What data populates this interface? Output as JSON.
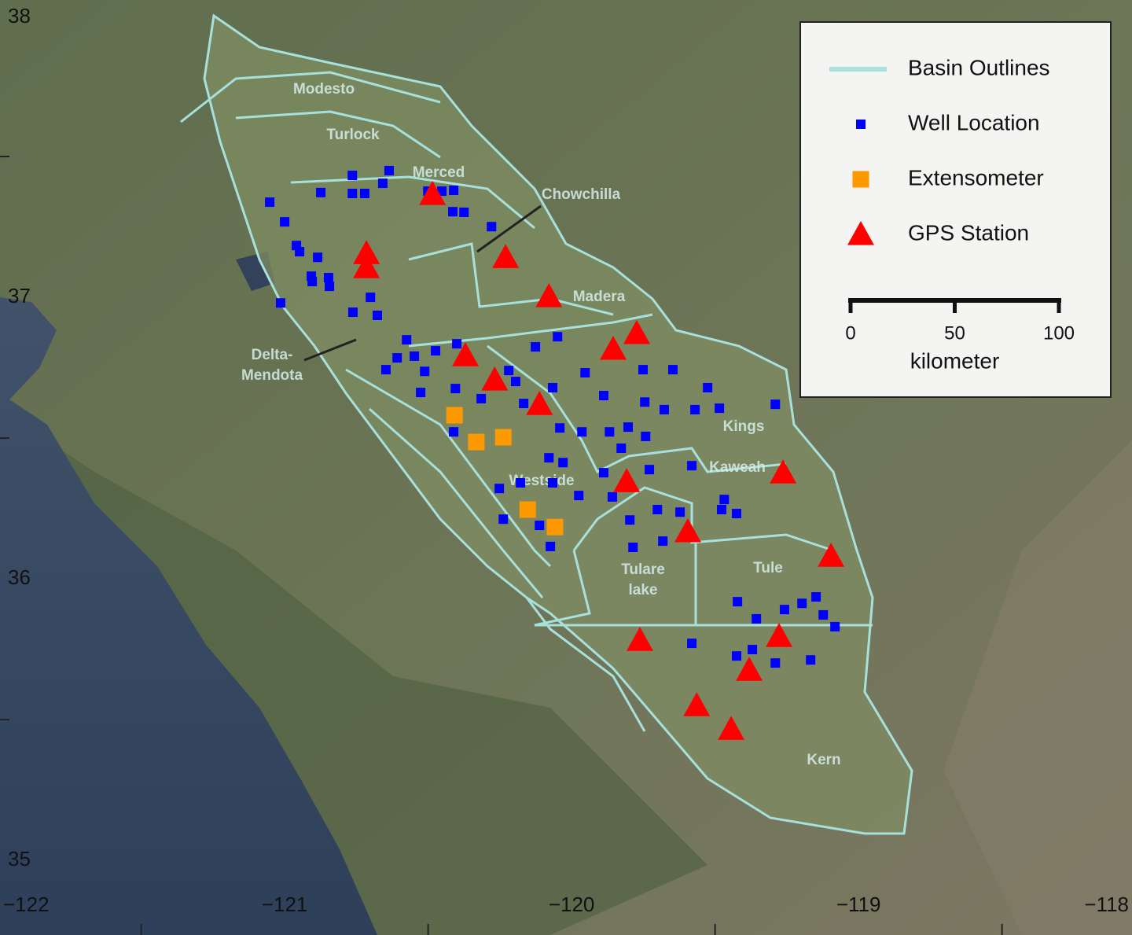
{
  "map": {
    "type": "point-map",
    "xlim": [
      -121.992,
      -118.047
    ],
    "ylim": [
      34.735,
      38.056
    ],
    "xticks": [
      {
        "value": -122,
        "label": "−122"
      },
      {
        "value": -121,
        "label": "−121"
      },
      {
        "value": -120,
        "label": "−120"
      },
      {
        "value": -119,
        "label": "−119"
      },
      {
        "value": -118,
        "label": "−118"
      }
    ],
    "yticks": [
      38,
      37,
      36,
      35
    ],
    "xminorticks": [
      -121.5,
      -120.5,
      -119.5,
      -118.5
    ],
    "yminorticks": [
      37.5,
      36.5,
      35.5
    ],
    "basins": [
      {
        "lines": [
          "Modesto"
        ]
      },
      {
        "lines": [
          "Turlock"
        ]
      },
      {
        "lines": [
          "Merced"
        ]
      },
      {
        "lines": [
          "Chowchilla"
        ]
      },
      {
        "lines": [
          "Madera"
        ]
      },
      {
        "lines": [
          "Delta-",
          "Mendota"
        ]
      },
      {
        "lines": [
          "Westside"
        ]
      },
      {
        "lines": [
          "Kings"
        ]
      },
      {
        "lines": [
          "Kaweah"
        ]
      },
      {
        "lines": [
          "Tulare",
          "lake"
        ]
      },
      {
        "lines": [
          "Tule"
        ]
      },
      {
        "lines": [
          "Kern"
        ]
      }
    ],
    "outline": {
      "name": "Basin Outlines",
      "color": "#a8e0dc"
    },
    "series": [
      {
        "name": "Well Location",
        "color": "#0000ff",
        "marker": "square",
        "lon": [
          -121.052,
          -121.0,
          -120.959,
          -120.948,
          -120.885,
          -120.907,
          -120.904,
          -120.847,
          -120.844,
          -121.014,
          -120.762,
          -120.701,
          -120.677,
          -120.874,
          -120.764,
          -120.764,
          -120.721,
          -120.658,
          -120.636,
          -120.501,
          -120.452,
          -120.411,
          -120.414,
          -120.375,
          -120.279,
          -120.575,
          -120.608,
          -120.647,
          -120.548,
          -120.512,
          -120.474,
          -120.4,
          -120.526,
          -120.405,
          -120.411,
          -120.315,
          -120.219,
          -120.195,
          -120.167,
          -120.066,
          -120.126,
          -120.049,
          -119.953,
          -119.888,
          -119.751,
          -119.647,
          -119.745,
          -119.677,
          -119.57,
          -119.526,
          -119.485,
          -119.29,
          -120.041,
          -119.964,
          -119.868,
          -119.803,
          -119.742,
          -119.827,
          -119.888,
          -120.079,
          -120.03,
          -120.252,
          -120.178,
          -120.066,
          -119.975,
          -119.858,
          -119.729,
          -119.581,
          -119.468,
          -119.425,
          -119.477,
          -119.701,
          -119.622,
          -119.797,
          -119.682,
          -119.786,
          -120.074,
          -120.238,
          -120.112,
          -119.422,
          -119.356,
          -119.258,
          -119.197,
          -119.148,
          -119.123,
          -119.082,
          -119.581,
          -119.425,
          -119.37,
          -119.29,
          -119.167
        ],
        "lat": [
          37.338,
          37.268,
          37.184,
          37.162,
          37.142,
          37.075,
          37.056,
          37.07,
          37.039,
          36.98,
          36.947,
          37.0,
          36.936,
          37.372,
          37.433,
          37.369,
          37.369,
          37.405,
          37.45,
          37.377,
          37.377,
          37.38,
          37.304,
          37.302,
          37.251,
          36.849,
          36.785,
          36.743,
          36.791,
          36.737,
          36.81,
          36.835,
          36.662,
          36.676,
          36.522,
          36.64,
          36.74,
          36.701,
          36.623,
          36.679,
          36.824,
          36.86,
          36.732,
          36.651,
          36.743,
          36.743,
          36.628,
          36.601,
          36.601,
          36.679,
          36.606,
          36.62,
          36.536,
          36.522,
          36.522,
          36.539,
          36.506,
          36.464,
          36.377,
          36.43,
          36.413,
          36.321,
          36.341,
          36.341,
          36.296,
          36.291,
          36.388,
          36.402,
          36.282,
          36.232,
          36.246,
          36.246,
          36.237,
          36.209,
          36.134,
          36.112,
          36.115,
          36.212,
          36.19,
          35.919,
          35.858,
          35.891,
          35.913,
          35.936,
          35.872,
          35.83,
          35.771,
          35.726,
          35.749,
          35.701,
          35.712
        ]
      },
      {
        "name": "Extensometer",
        "color": "#ff9900",
        "marker": "big-square",
        "lon": [
          -120.408,
          -120.332,
          -120.238,
          -120.153,
          -120.058
        ],
        "lat": [
          36.581,
          36.486,
          36.503,
          36.246,
          36.184
        ]
      },
      {
        "name": "GPS Station",
        "color": "#ff0000",
        "marker": "triangle",
        "lon": [
          -120.485,
          -120.715,
          -120.715,
          -120.23,
          -120.079,
          -119.773,
          -119.855,
          -120.37,
          -120.268,
          -120.112,
          -119.808,
          -119.263,
          -119.595,
          -119.096,
          -119.762,
          -119.277,
          -119.381,
          -119.564,
          -119.444
        ],
        "lat": [
          37.366,
          37.156,
          37.106,
          37.142,
          37.003,
          36.872,
          36.816,
          36.793,
          36.707,
          36.62,
          36.346,
          36.377,
          36.168,
          36.081,
          35.782,
          35.796,
          35.676,
          35.55,
          35.466
        ]
      }
    ],
    "scalebar": {
      "ticks": [
        0,
        50,
        100
      ],
      "unit": "kilometer"
    }
  }
}
